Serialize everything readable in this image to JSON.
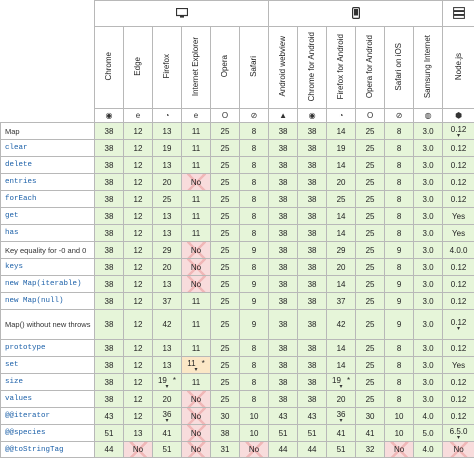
{
  "platforms": [
    {
      "name": "desktop",
      "icon": "desktop-monitor-icon",
      "span": 6
    },
    {
      "name": "mobile",
      "icon": "mobile-phone-icon",
      "span": 6
    },
    {
      "name": "server",
      "icon": "server-icon",
      "span": 1
    }
  ],
  "browsers": [
    {
      "label": "Chrome",
      "icon": "chrome-icon",
      "glyph": "◉"
    },
    {
      "label": "Edge",
      "icon": "edge-icon",
      "glyph": "e"
    },
    {
      "label": "Firefox",
      "icon": "firefox-icon",
      "glyph": "◔"
    },
    {
      "label": "Internet Explorer",
      "icon": "internet-explorer-icon",
      "glyph": "e"
    },
    {
      "label": "Opera",
      "icon": "opera-icon",
      "glyph": "O"
    },
    {
      "label": "Safari",
      "icon": "safari-icon",
      "glyph": "⊘"
    },
    {
      "label": "Android webview",
      "icon": "android-icon",
      "glyph": "▲"
    },
    {
      "label": "Chrome for Android",
      "icon": "chrome-icon",
      "glyph": "◉"
    },
    {
      "label": "Firefox for Android",
      "icon": "firefox-icon",
      "glyph": "◔"
    },
    {
      "label": "Opera for Android",
      "icon": "opera-icon",
      "glyph": "O"
    },
    {
      "label": "Safari on iOS",
      "icon": "safari-icon",
      "glyph": "⊘"
    },
    {
      "label": "Samsung Internet",
      "icon": "samsung-internet-icon",
      "glyph": "◍"
    },
    {
      "label": "Node.js",
      "icon": "nodejs-icon",
      "glyph": "⬢"
    }
  ],
  "rows": [
    {
      "feature": "Map",
      "code": false,
      "cells": [
        {
          "v": "38",
          "s": "y"
        },
        {
          "v": "12",
          "s": "y"
        },
        {
          "v": "13",
          "s": "y"
        },
        {
          "v": "11",
          "s": "y"
        },
        {
          "v": "25",
          "s": "y"
        },
        {
          "v": "8",
          "s": "y"
        },
        {
          "v": "38",
          "s": "y"
        },
        {
          "v": "38",
          "s": "y"
        },
        {
          "v": "14",
          "s": "y"
        },
        {
          "v": "25",
          "s": "y"
        },
        {
          "v": "8",
          "s": "y"
        },
        {
          "v": "3.0",
          "s": "y"
        },
        {
          "v": "0.12",
          "s": "y",
          "caret": true
        }
      ]
    },
    {
      "feature": "clear",
      "code": true,
      "cells": [
        {
          "v": "38",
          "s": "y"
        },
        {
          "v": "12",
          "s": "y"
        },
        {
          "v": "19",
          "s": "y"
        },
        {
          "v": "11",
          "s": "y"
        },
        {
          "v": "25",
          "s": "y"
        },
        {
          "v": "8",
          "s": "y"
        },
        {
          "v": "38",
          "s": "y"
        },
        {
          "v": "38",
          "s": "y"
        },
        {
          "v": "19",
          "s": "y"
        },
        {
          "v": "25",
          "s": "y"
        },
        {
          "v": "8",
          "s": "y"
        },
        {
          "v": "3.0",
          "s": "y"
        },
        {
          "v": "0.12",
          "s": "y"
        }
      ]
    },
    {
      "feature": "delete",
      "code": true,
      "cells": [
        {
          "v": "38",
          "s": "y"
        },
        {
          "v": "12",
          "s": "y"
        },
        {
          "v": "13",
          "s": "y"
        },
        {
          "v": "11",
          "s": "y"
        },
        {
          "v": "25",
          "s": "y"
        },
        {
          "v": "8",
          "s": "y"
        },
        {
          "v": "38",
          "s": "y"
        },
        {
          "v": "38",
          "s": "y"
        },
        {
          "v": "14",
          "s": "y"
        },
        {
          "v": "25",
          "s": "y"
        },
        {
          "v": "8",
          "s": "y"
        },
        {
          "v": "3.0",
          "s": "y"
        },
        {
          "v": "0.12",
          "s": "y"
        }
      ]
    },
    {
      "feature": "entries",
      "code": true,
      "cells": [
        {
          "v": "38",
          "s": "y"
        },
        {
          "v": "12",
          "s": "y"
        },
        {
          "v": "20",
          "s": "y"
        },
        {
          "v": "No",
          "s": "n"
        },
        {
          "v": "25",
          "s": "y"
        },
        {
          "v": "8",
          "s": "y"
        },
        {
          "v": "38",
          "s": "y"
        },
        {
          "v": "38",
          "s": "y"
        },
        {
          "v": "20",
          "s": "y"
        },
        {
          "v": "25",
          "s": "y"
        },
        {
          "v": "8",
          "s": "y"
        },
        {
          "v": "3.0",
          "s": "y"
        },
        {
          "v": "0.12",
          "s": "y"
        }
      ]
    },
    {
      "feature": "forEach",
      "code": true,
      "cells": [
        {
          "v": "38",
          "s": "y"
        },
        {
          "v": "12",
          "s": "y"
        },
        {
          "v": "25",
          "s": "y"
        },
        {
          "v": "11",
          "s": "y"
        },
        {
          "v": "25",
          "s": "y"
        },
        {
          "v": "8",
          "s": "y"
        },
        {
          "v": "38",
          "s": "y"
        },
        {
          "v": "38",
          "s": "y"
        },
        {
          "v": "25",
          "s": "y"
        },
        {
          "v": "25",
          "s": "y"
        },
        {
          "v": "8",
          "s": "y"
        },
        {
          "v": "3.0",
          "s": "y"
        },
        {
          "v": "0.12",
          "s": "y"
        }
      ]
    },
    {
      "feature": "get",
      "code": true,
      "cells": [
        {
          "v": "38",
          "s": "y"
        },
        {
          "v": "12",
          "s": "y"
        },
        {
          "v": "13",
          "s": "y"
        },
        {
          "v": "11",
          "s": "y"
        },
        {
          "v": "25",
          "s": "y"
        },
        {
          "v": "8",
          "s": "y"
        },
        {
          "v": "38",
          "s": "y"
        },
        {
          "v": "38",
          "s": "y"
        },
        {
          "v": "14",
          "s": "y"
        },
        {
          "v": "25",
          "s": "y"
        },
        {
          "v": "8",
          "s": "y"
        },
        {
          "v": "3.0",
          "s": "y"
        },
        {
          "v": "Yes",
          "s": "y"
        }
      ]
    },
    {
      "feature": "has",
      "code": true,
      "cells": [
        {
          "v": "38",
          "s": "y"
        },
        {
          "v": "12",
          "s": "y"
        },
        {
          "v": "13",
          "s": "y"
        },
        {
          "v": "11",
          "s": "y"
        },
        {
          "v": "25",
          "s": "y"
        },
        {
          "v": "8",
          "s": "y"
        },
        {
          "v": "38",
          "s": "y"
        },
        {
          "v": "38",
          "s": "y"
        },
        {
          "v": "14",
          "s": "y"
        },
        {
          "v": "25",
          "s": "y"
        },
        {
          "v": "8",
          "s": "y"
        },
        {
          "v": "3.0",
          "s": "y"
        },
        {
          "v": "Yes",
          "s": "y"
        }
      ]
    },
    {
      "feature": "Key equality for -0 and 0",
      "code": false,
      "cells": [
        {
          "v": "38",
          "s": "y"
        },
        {
          "v": "12",
          "s": "y"
        },
        {
          "v": "29",
          "s": "y"
        },
        {
          "v": "No",
          "s": "n"
        },
        {
          "v": "25",
          "s": "y"
        },
        {
          "v": "9",
          "s": "y"
        },
        {
          "v": "38",
          "s": "y"
        },
        {
          "v": "38",
          "s": "y"
        },
        {
          "v": "29",
          "s": "y"
        },
        {
          "v": "25",
          "s": "y"
        },
        {
          "v": "9",
          "s": "y"
        },
        {
          "v": "3.0",
          "s": "y"
        },
        {
          "v": "4.0.0",
          "s": "y"
        }
      ]
    },
    {
      "feature": "keys",
      "code": true,
      "cells": [
        {
          "v": "38",
          "s": "y"
        },
        {
          "v": "12",
          "s": "y"
        },
        {
          "v": "20",
          "s": "y"
        },
        {
          "v": "No",
          "s": "n"
        },
        {
          "v": "25",
          "s": "y"
        },
        {
          "v": "8",
          "s": "y"
        },
        {
          "v": "38",
          "s": "y"
        },
        {
          "v": "38",
          "s": "y"
        },
        {
          "v": "20",
          "s": "y"
        },
        {
          "v": "25",
          "s": "y"
        },
        {
          "v": "8",
          "s": "y"
        },
        {
          "v": "3.0",
          "s": "y"
        },
        {
          "v": "0.12",
          "s": "y"
        }
      ]
    },
    {
      "feature": "new Map(iterable)",
      "code": true,
      "cells": [
        {
          "v": "38",
          "s": "y"
        },
        {
          "v": "12",
          "s": "y"
        },
        {
          "v": "13",
          "s": "y"
        },
        {
          "v": "No",
          "s": "n"
        },
        {
          "v": "25",
          "s": "y"
        },
        {
          "v": "9",
          "s": "y"
        },
        {
          "v": "38",
          "s": "y"
        },
        {
          "v": "38",
          "s": "y"
        },
        {
          "v": "14",
          "s": "y"
        },
        {
          "v": "25",
          "s": "y"
        },
        {
          "v": "9",
          "s": "y"
        },
        {
          "v": "3.0",
          "s": "y"
        },
        {
          "v": "0.12",
          "s": "y"
        }
      ]
    },
    {
      "feature": "new Map(null)",
      "code": true,
      "cells": [
        {
          "v": "38",
          "s": "y"
        },
        {
          "v": "12",
          "s": "y"
        },
        {
          "v": "37",
          "s": "y"
        },
        {
          "v": "11",
          "s": "y"
        },
        {
          "v": "25",
          "s": "y"
        },
        {
          "v": "9",
          "s": "y"
        },
        {
          "v": "38",
          "s": "y"
        },
        {
          "v": "38",
          "s": "y"
        },
        {
          "v": "37",
          "s": "y"
        },
        {
          "v": "25",
          "s": "y"
        },
        {
          "v": "9",
          "s": "y"
        },
        {
          "v": "3.0",
          "s": "y"
        },
        {
          "v": "0.12",
          "s": "y"
        }
      ]
    },
    {
      "feature": "Map() without new throws",
      "code": false,
      "wrap": true,
      "cells": [
        {
          "v": "38",
          "s": "y"
        },
        {
          "v": "12",
          "s": "y"
        },
        {
          "v": "42",
          "s": "y"
        },
        {
          "v": "11",
          "s": "y"
        },
        {
          "v": "25",
          "s": "y"
        },
        {
          "v": "9",
          "s": "y"
        },
        {
          "v": "38",
          "s": "y"
        },
        {
          "v": "38",
          "s": "y"
        },
        {
          "v": "42",
          "s": "y"
        },
        {
          "v": "25",
          "s": "y"
        },
        {
          "v": "9",
          "s": "y"
        },
        {
          "v": "3.0",
          "s": "y"
        },
        {
          "v": "0.12",
          "s": "y",
          "caret": true
        }
      ]
    },
    {
      "feature": "prototype",
      "code": true,
      "cells": [
        {
          "v": "38",
          "s": "y"
        },
        {
          "v": "12",
          "s": "y"
        },
        {
          "v": "13",
          "s": "y"
        },
        {
          "v": "11",
          "s": "y"
        },
        {
          "v": "25",
          "s": "y"
        },
        {
          "v": "8",
          "s": "y"
        },
        {
          "v": "38",
          "s": "y"
        },
        {
          "v": "38",
          "s": "y"
        },
        {
          "v": "14",
          "s": "y"
        },
        {
          "v": "25",
          "s": "y"
        },
        {
          "v": "8",
          "s": "y"
        },
        {
          "v": "3.0",
          "s": "y"
        },
        {
          "v": "0.12",
          "s": "y"
        }
      ]
    },
    {
      "feature": "set",
      "code": true,
      "cells": [
        {
          "v": "38",
          "s": "y"
        },
        {
          "v": "12",
          "s": "y"
        },
        {
          "v": "13",
          "s": "y"
        },
        {
          "v": "11",
          "s": "p",
          "star": true,
          "caret": true
        },
        {
          "v": "25",
          "s": "y"
        },
        {
          "v": "8",
          "s": "y"
        },
        {
          "v": "38",
          "s": "y"
        },
        {
          "v": "38",
          "s": "y"
        },
        {
          "v": "14",
          "s": "y"
        },
        {
          "v": "25",
          "s": "y"
        },
        {
          "v": "8",
          "s": "y"
        },
        {
          "v": "3.0",
          "s": "y"
        },
        {
          "v": "Yes",
          "s": "y"
        }
      ]
    },
    {
      "feature": "size",
      "code": true,
      "cells": [
        {
          "v": "38",
          "s": "y"
        },
        {
          "v": "12",
          "s": "y"
        },
        {
          "v": "19",
          "s": "y",
          "star": true,
          "caret": true
        },
        {
          "v": "11",
          "s": "y"
        },
        {
          "v": "25",
          "s": "y"
        },
        {
          "v": "8",
          "s": "y"
        },
        {
          "v": "38",
          "s": "y"
        },
        {
          "v": "38",
          "s": "y"
        },
        {
          "v": "19",
          "s": "y",
          "star": true,
          "caret": true
        },
        {
          "v": "25",
          "s": "y"
        },
        {
          "v": "8",
          "s": "y"
        },
        {
          "v": "3.0",
          "s": "y"
        },
        {
          "v": "0.12",
          "s": "y"
        }
      ]
    },
    {
      "feature": "values",
      "code": true,
      "cells": [
        {
          "v": "38",
          "s": "y"
        },
        {
          "v": "12",
          "s": "y"
        },
        {
          "v": "20",
          "s": "y"
        },
        {
          "v": "No",
          "s": "n"
        },
        {
          "v": "25",
          "s": "y"
        },
        {
          "v": "8",
          "s": "y"
        },
        {
          "v": "38",
          "s": "y"
        },
        {
          "v": "38",
          "s": "y"
        },
        {
          "v": "20",
          "s": "y"
        },
        {
          "v": "25",
          "s": "y"
        },
        {
          "v": "8",
          "s": "y"
        },
        {
          "v": "3.0",
          "s": "y"
        },
        {
          "v": "0.12",
          "s": "y"
        }
      ]
    },
    {
      "feature": "@@iterator",
      "code": true,
      "cells": [
        {
          "v": "43",
          "s": "y"
        },
        {
          "v": "12",
          "s": "y"
        },
        {
          "v": "36",
          "s": "y",
          "caret": true
        },
        {
          "v": "No",
          "s": "n"
        },
        {
          "v": "30",
          "s": "y"
        },
        {
          "v": "10",
          "s": "y"
        },
        {
          "v": "43",
          "s": "y"
        },
        {
          "v": "43",
          "s": "y"
        },
        {
          "v": "36",
          "s": "y",
          "caret": true
        },
        {
          "v": "30",
          "s": "y"
        },
        {
          "v": "10",
          "s": "y"
        },
        {
          "v": "4.0",
          "s": "y"
        },
        {
          "v": "0.12",
          "s": "y"
        }
      ]
    },
    {
      "feature": "@@species",
      "code": true,
      "cells": [
        {
          "v": "51",
          "s": "y"
        },
        {
          "v": "13",
          "s": "y"
        },
        {
          "v": "41",
          "s": "y"
        },
        {
          "v": "No",
          "s": "n"
        },
        {
          "v": "38",
          "s": "y"
        },
        {
          "v": "10",
          "s": "y"
        },
        {
          "v": "51",
          "s": "y"
        },
        {
          "v": "51",
          "s": "y"
        },
        {
          "v": "41",
          "s": "y"
        },
        {
          "v": "41",
          "s": "y"
        },
        {
          "v": "10",
          "s": "y"
        },
        {
          "v": "5.0",
          "s": "y"
        },
        {
          "v": "6.5.0",
          "s": "y",
          "caret": true
        }
      ]
    },
    {
      "feature": "@@toStringTag",
      "code": true,
      "cells": [
        {
          "v": "44",
          "s": "y"
        },
        {
          "v": "No",
          "s": "n"
        },
        {
          "v": "51",
          "s": "y"
        },
        {
          "v": "No",
          "s": "n"
        },
        {
          "v": "31",
          "s": "y"
        },
        {
          "v": "No",
          "s": "n"
        },
        {
          "v": "44",
          "s": "y"
        },
        {
          "v": "44",
          "s": "y"
        },
        {
          "v": "51",
          "s": "y"
        },
        {
          "v": "32",
          "s": "y"
        },
        {
          "v": "No",
          "s": "n"
        },
        {
          "v": "4.0",
          "s": "y"
        },
        {
          "v": "No",
          "s": "n"
        }
      ]
    }
  ],
  "colors": {
    "supported": "#e6f5d9",
    "unsupported": "#f8dcdc",
    "partial": "#fbe7c6",
    "border": "#b8b8b8"
  }
}
